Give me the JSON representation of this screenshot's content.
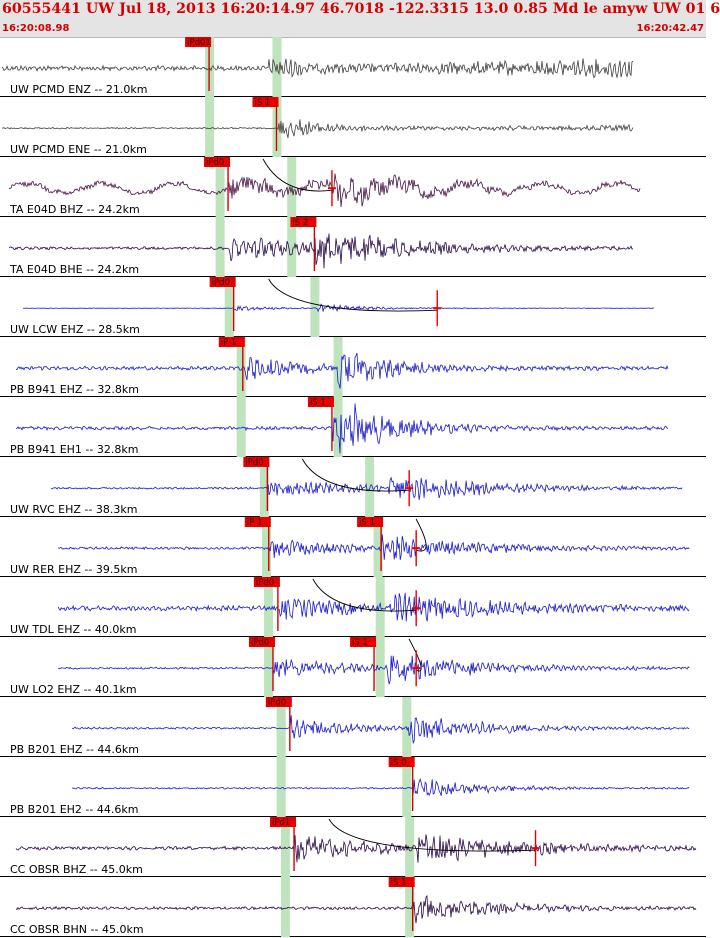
{
  "header": {
    "title": "60555441 UW Jul 18, 2013 16:20:14.97    46.7018 -122.3315 13.0 0.85 Md le amyw UW 01    6",
    "start_time": "16:20:08.98",
    "end_time": "16:20:42.47"
  },
  "chart_data": {
    "type": "seismogram",
    "time_window": [
      "16:20:08.98",
      "16:20:42.47"
    ],
    "traces": [
      {
        "label": "UW PCMD ENZ -- 21.0km",
        "color": "#404040",
        "start": 0.0,
        "end": 0.9,
        "amp": 0.55,
        "noise": 0.1,
        "onset": 0.38,
        "onset2": 0.38,
        "decay": 8,
        "grow": 0.6,
        "freq": 55,
        "green": [
          0.295,
          0.391
        ],
        "picks": [
          {
            "label": "iPd01",
            "x": 0.295
          }
        ]
      },
      {
        "label": "UW PCMD ENE -- 21.0km",
        "color": "#404040",
        "start": 0.0,
        "end": 0.9,
        "amp": 0.55,
        "noise": 0.03,
        "onset": 0.393,
        "onset2": 0.393,
        "decay": 6,
        "grow": 0.2,
        "freq": 55,
        "green": [
          0.295,
          0.391
        ],
        "picks": [
          {
            "label": "iS 1",
            "x": 0.391
          }
        ]
      },
      {
        "label": "TA E04D BHZ -- 24.2km",
        "color": "#4a1446",
        "start": 0.01,
        "end": 0.91,
        "amp": 0.45,
        "noise": 0.12,
        "onset": 0.322,
        "onset2": 0.47,
        "decay": 4,
        "grow": 0.0,
        "freq": 12,
        "green": [
          0.31,
          0.412
        ],
        "picks": [
          {
            "label": "iPd0",
            "x": 0.322,
            "arc": 0.47
          }
        ],
        "marker": 0.47
      },
      {
        "label": "TA E04D BHE -- 24.2km",
        "color": "#2a0a4a",
        "start": 0.01,
        "end": 0.9,
        "amp": 0.5,
        "noise": 0.06,
        "onset": 0.322,
        "onset2": 0.445,
        "decay": 3,
        "grow": 0.0,
        "freq": 30,
        "green": [
          0.31,
          0.412
        ],
        "picks": [
          {
            "label": "iS 2",
            "x": 0.445
          }
        ]
      },
      {
        "label": "UW LCW EHZ -- 28.5km",
        "color": "#1a1acc",
        "start": 0.03,
        "end": 0.93,
        "amp": 0.1,
        "noise": 0.01,
        "onset": 0.33,
        "onset2": 0.45,
        "decay": 5,
        "grow": 0.0,
        "freq": 40,
        "green": [
          0.323,
          0.445
        ],
        "picks": [
          {
            "label": "iPd0",
            "x": 0.33,
            "arc": 0.62
          }
        ],
        "marker": 0.62
      },
      {
        "label": "PB B941 EHZ -- 32.8km",
        "color": "#1a1acc",
        "start": 0.02,
        "end": 0.95,
        "amp": 0.55,
        "noise": 0.08,
        "onset": 0.343,
        "onset2": 0.478,
        "decay": 5,
        "grow": 0.0,
        "freq": 38,
        "green": [
          0.34,
          0.478
        ],
        "picks": [
          {
            "label": "iP 1",
            "x": 0.343
          }
        ]
      },
      {
        "label": "PB B941 EH1 -- 32.8km",
        "color": "#1a1acc",
        "start": 0.02,
        "end": 0.95,
        "amp": 0.55,
        "noise": 0.07,
        "onset": 0.47,
        "onset2": 0.478,
        "decay": 5,
        "grow": 0.0,
        "freq": 38,
        "green": [
          0.34,
          0.478
        ],
        "picks": [
          {
            "label": "iS 1",
            "x": 0.47
          }
        ]
      },
      {
        "label": "UW RVC EHZ -- 38.3km",
        "color": "#1a1acc",
        "start": 0.07,
        "end": 0.97,
        "amp": 0.4,
        "noise": 0.04,
        "onset": 0.378,
        "onset2": 0.55,
        "decay": 3,
        "grow": 0.0,
        "freq": 50,
        "green": [
          0.373,
          0.523
        ],
        "picks": [
          {
            "label": "iPd0",
            "x": 0.378,
            "arc": 0.58
          }
        ],
        "marker": 0.58
      },
      {
        "label": "UW RER EHZ -- 39.5km",
        "color": "#1a1acc",
        "start": 0.08,
        "end": 0.98,
        "amp": 0.35,
        "noise": 0.05,
        "onset": 0.38,
        "onset2": 0.54,
        "decay": 3,
        "grow": 0.0,
        "freq": 50,
        "green": [
          0.376,
          0.535
        ],
        "picks": [
          {
            "label": "iP 1",
            "x": 0.38
          },
          {
            "label": "iS 1",
            "x": 0.54,
            "arc": 0.59
          }
        ],
        "marker": 0.59
      },
      {
        "label": "UW TDL EHZ -- 40.0km",
        "color": "#1a1acc",
        "start": 0.08,
        "end": 0.98,
        "amp": 0.4,
        "noise": 0.1,
        "onset": 0.393,
        "onset2": 0.56,
        "decay": 3,
        "grow": 0.0,
        "freq": 50,
        "green": [
          0.379,
          0.538
        ],
        "picks": [
          {
            "label": "iPd0",
            "x": 0.393,
            "arc": 0.59
          }
        ],
        "marker": 0.59
      },
      {
        "label": "UW LO2 EHZ -- 40.1km",
        "color": "#1a1acc",
        "start": 0.08,
        "end": 0.98,
        "amp": 0.4,
        "noise": 0.04,
        "onset": 0.386,
        "onset2": 0.55,
        "decay": 3,
        "grow": 0.0,
        "freq": 50,
        "green": [
          0.379,
          0.538
        ],
        "picks": [
          {
            "label": "iPd0",
            "x": 0.386
          },
          {
            "label": "iS 1",
            "x": 0.53,
            "arc": 0.59
          }
        ],
        "marker": 0.59
      },
      {
        "label": "PB B201 EHZ -- 44.6km",
        "color": "#1a1acc",
        "start": 0.1,
        "end": 0.98,
        "amp": 0.45,
        "noise": 0.04,
        "onset": 0.41,
        "onset2": 0.58,
        "decay": 4,
        "grow": 0.0,
        "freq": 42,
        "green": [
          0.397,
          0.576
        ],
        "picks": [
          {
            "label": "iPd0",
            "x": 0.41
          }
        ]
      },
      {
        "label": "PB B201 EH2 -- 44.6km",
        "color": "#1a1acc",
        "start": 0.1,
        "end": 0.98,
        "amp": 0.5,
        "noise": 0.03,
        "onset": 0.585,
        "onset2": 0.585,
        "decay": 4,
        "grow": 0.0,
        "freq": 42,
        "green": [
          0.397,
          0.576
        ],
        "picks": [
          {
            "label": "iS 0",
            "x": 0.585
          }
        ]
      },
      {
        "label": "CC OBSR BHZ -- 45.0km",
        "color": "#2a0a4a",
        "start": 0.02,
        "end": 0.99,
        "amp": 0.5,
        "noise": 0.07,
        "onset": 0.416,
        "onset2": 0.59,
        "decay": 3,
        "grow": 0.0,
        "freq": 36,
        "green": [
          0.403,
          0.58
        ],
        "picks": [
          {
            "label": "iPd1",
            "x": 0.416,
            "arc": 0.76
          }
        ],
        "marker": 0.76
      },
      {
        "label": "CC OBSR BHN -- 45.0km",
        "color": "#2a0a4a",
        "start": 0.02,
        "end": 0.99,
        "amp": 0.55,
        "noise": 0.06,
        "onset": 0.585,
        "onset2": 0.585,
        "decay": 3,
        "grow": 0.0,
        "freq": 36,
        "green": [
          0.403,
          0.58
        ],
        "picks": [
          {
            "label": "iS 1",
            "x": 0.585
          }
        ]
      }
    ]
  }
}
